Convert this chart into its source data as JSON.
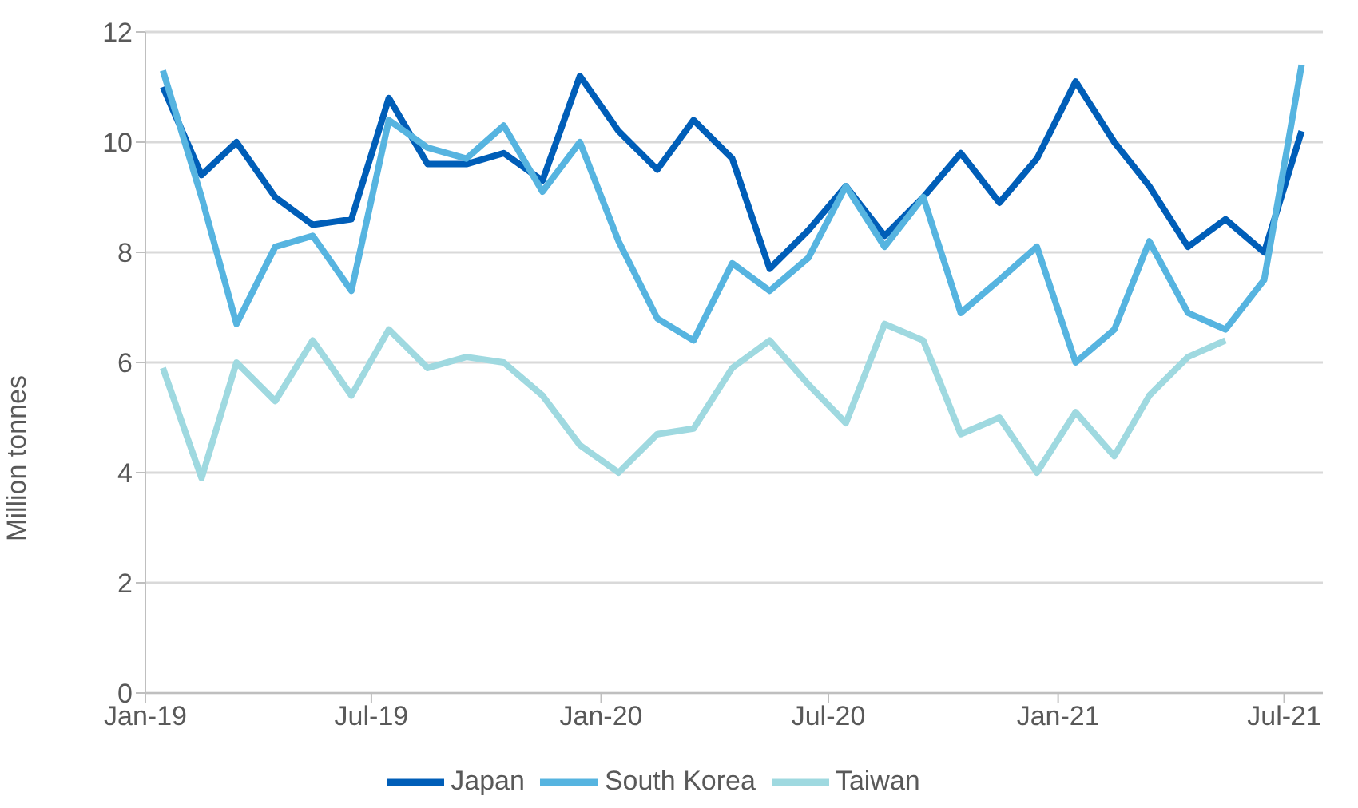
{
  "chart_data": {
    "type": "line",
    "ylabel": "Million tonnes",
    "x": [
      "2019-01-15",
      "2019-02-15",
      "2019-03-15",
      "2019-04-15",
      "2019-05-15",
      "2019-06-15",
      "2019-07-15",
      "2019-08-15",
      "2019-09-15",
      "2019-10-15",
      "2019-11-15",
      "2019-12-15",
      "2020-01-15",
      "2020-02-15",
      "2020-03-15",
      "2020-04-15",
      "2020-05-15",
      "2020-06-15",
      "2020-07-15",
      "2020-08-15",
      "2020-09-15",
      "2020-10-15",
      "2020-11-15",
      "2020-12-15",
      "2021-01-15",
      "2021-02-15",
      "2021-03-15",
      "2021-04-15",
      "2021-05-15",
      "2021-06-15",
      "2021-07-15"
    ],
    "series": [
      {
        "name": "Japan",
        "color": "#005eb8",
        "values": [
          11.0,
          9.4,
          10.0,
          9.0,
          8.5,
          8.6,
          10.8,
          9.6,
          9.6,
          9.8,
          9.3,
          11.2,
          10.2,
          9.5,
          10.4,
          9.7,
          7.7,
          8.4,
          9.2,
          8.3,
          9.0,
          9.8,
          8.9,
          9.7,
          11.1,
          10.0,
          9.2,
          8.1,
          8.6,
          8.0,
          10.2
        ]
      },
      {
        "name": "South Korea",
        "color": "#56b4e0",
        "values": [
          11.3,
          9.0,
          6.7,
          8.1,
          8.3,
          7.3,
          10.4,
          9.9,
          9.7,
          10.3,
          9.1,
          10.0,
          8.2,
          6.8,
          6.4,
          7.8,
          7.3,
          7.9,
          9.2,
          8.1,
          9.0,
          6.9,
          7.5,
          8.1,
          6.0,
          6.6,
          8.2,
          6.9,
          6.6,
          7.5,
          11.4
        ]
      },
      {
        "name": "Taiwan",
        "color": "#9fd9e0",
        "values": [
          5.9,
          3.9,
          6.0,
          5.3,
          6.4,
          5.4,
          6.6,
          5.9,
          6.1,
          6.0,
          5.4,
          4.5,
          4.0,
          4.7,
          4.8,
          5.9,
          6.4,
          5.6,
          4.9,
          6.7,
          6.4,
          4.7,
          5.0,
          4.0,
          5.1,
          4.3,
          5.4,
          6.1,
          6.4,
          null,
          null
        ]
      }
    ],
    "xlim": [
      "2019-01-01",
      "2021-08-01"
    ],
    "xticks": [
      {
        "value": "2019-01-01",
        "label": "Jan-19"
      },
      {
        "value": "2019-07-01",
        "label": "Jul-19"
      },
      {
        "value": "2020-01-01",
        "label": "Jan-20"
      },
      {
        "value": "2020-07-01",
        "label": "Jul-20"
      },
      {
        "value": "2021-01-01",
        "label": "Jan-21"
      },
      {
        "value": "2021-07-01",
        "label": "Jul-21"
      }
    ],
    "ylim": [
      0,
      12
    ],
    "yticks": [
      0,
      2,
      4,
      6,
      8,
      10,
      12
    ],
    "grid": "y",
    "legend": "bottom",
    "marker": "none",
    "line_style": "solid"
  }
}
